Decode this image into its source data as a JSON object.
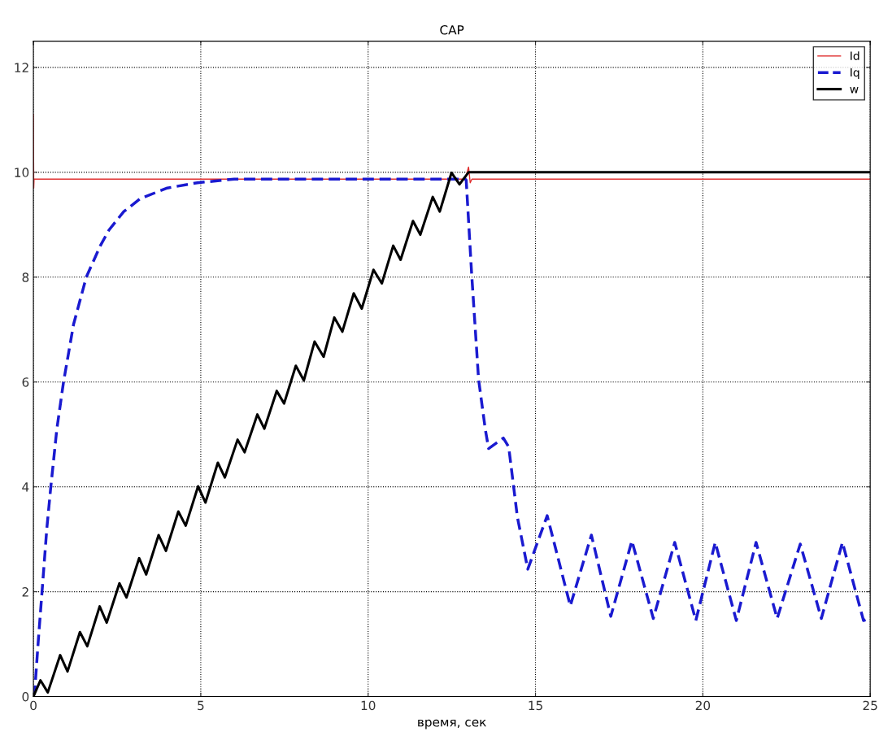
{
  "chart_data": {
    "type": "line",
    "title": "САР",
    "xlabel": "время, сек",
    "xlim": [
      0,
      25
    ],
    "xticks": [
      0,
      5,
      10,
      15,
      20,
      25
    ],
    "ylim": [
      0,
      12.5
    ],
    "yticks": [
      0,
      2,
      4,
      6,
      8,
      10,
      12
    ],
    "grid": true,
    "legend": "top right",
    "series": [
      {
        "name": "Id",
        "color": "#e03030",
        "line_style": "solid",
        "x": [
          0,
          0.01,
          0.02,
          0.05,
          12.9,
          13.0,
          13.05,
          13.1,
          25
        ],
        "values": [
          11.1,
          9.7,
          9.87,
          9.87,
          9.87,
          10.1,
          9.8,
          9.87,
          9.87
        ]
      },
      {
        "name": "Iq",
        "color": "#1a1ad0",
        "line_style": "dashed",
        "x": [
          0,
          0.05,
          0.15,
          0.27,
          0.4,
          0.52,
          0.7,
          0.9,
          1.2,
          1.58,
          2.0,
          2.26,
          2.7,
          3.2,
          4.0,
          4.9,
          6.0,
          12.9,
          12.93,
          13.09,
          13.3,
          13.5,
          13.6,
          14.04,
          14.2,
          14.46,
          14.77,
          15.35,
          16.04,
          16.67,
          17.25,
          17.88,
          18.52,
          19.16,
          19.79,
          20.37,
          21.0,
          21.59,
          22.22,
          22.91,
          23.54,
          24.17,
          24.8,
          25
        ],
        "values": [
          0,
          0.2,
          1.1,
          2.1,
          3.2,
          4.0,
          5.1,
          6.0,
          7.1,
          8.0,
          8.6,
          8.9,
          9.25,
          9.5,
          9.7,
          9.8,
          9.87,
          9.87,
          9.85,
          8.09,
          6.05,
          5.1,
          4.73,
          4.93,
          4.76,
          3.42,
          2.43,
          3.45,
          1.73,
          3.08,
          1.53,
          2.97,
          1.49,
          2.94,
          1.45,
          2.94,
          1.45,
          2.94,
          1.49,
          2.91,
          1.49,
          2.94,
          1.45,
          1.5
        ]
      },
      {
        "name": "w",
        "color": "#000000",
        "line_style": "solid",
        "x": [
          0,
          0.21,
          0.43,
          0.8,
          1.02,
          1.39,
          1.61,
          1.98,
          2.19,
          2.57,
          2.78,
          3.16,
          3.37,
          3.74,
          3.96,
          4.33,
          4.55,
          4.92,
          5.14,
          5.51,
          5.72,
          6.1,
          6.31,
          6.69,
          6.9,
          7.27,
          7.49,
          7.84,
          8.08,
          8.4,
          8.67,
          8.99,
          9.23,
          9.57,
          9.81,
          10.16,
          10.41,
          10.75,
          10.97,
          11.34,
          11.56,
          11.93,
          12.14,
          12.49,
          12.73,
          13.0,
          25
        ],
        "values": [
          0,
          0.31,
          0.08,
          0.79,
          0.48,
          1.23,
          0.96,
          1.72,
          1.41,
          2.16,
          1.89,
          2.64,
          2.33,
          3.08,
          2.78,
          3.53,
          3.26,
          4.01,
          3.7,
          4.46,
          4.18,
          4.9,
          4.66,
          5.38,
          5.11,
          5.83,
          5.59,
          6.31,
          6.03,
          6.77,
          6.48,
          7.23,
          6.96,
          7.69,
          7.4,
          8.14,
          7.88,
          8.6,
          8.33,
          9.07,
          8.81,
          9.53,
          9.25,
          9.99,
          9.77,
          10.0,
          10.0
        ]
      }
    ]
  }
}
